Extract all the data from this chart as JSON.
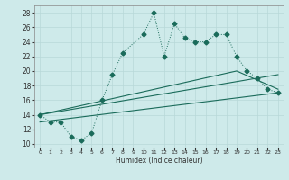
{
  "xlabel": "Humidex (Indice chaleur)",
  "xlim": [
    -0.5,
    23.5
  ],
  "ylim": [
    9.5,
    29
  ],
  "xticks": [
    0,
    1,
    2,
    3,
    4,
    5,
    6,
    7,
    8,
    9,
    10,
    11,
    12,
    13,
    14,
    15,
    16,
    17,
    18,
    19,
    20,
    21,
    22,
    23
  ],
  "yticks": [
    10,
    12,
    14,
    16,
    18,
    20,
    22,
    24,
    26,
    28
  ],
  "bg_color": "#ceeaea",
  "line_color": "#1a6b5a",
  "grid_color": "#b8d8d8",
  "main_line_x": [
    0,
    1,
    2,
    3,
    4,
    5,
    6,
    7,
    8,
    10,
    11,
    12,
    13,
    14,
    15,
    16,
    17,
    18,
    19,
    20,
    21,
    22,
    23
  ],
  "main_line_y": [
    14,
    13,
    13,
    11,
    10.5,
    11.5,
    16,
    19.5,
    22.5,
    25,
    28,
    22,
    26.5,
    24.5,
    24,
    24,
    25,
    25,
    22,
    20,
    19,
    17.5,
    17
  ],
  "line1_x": [
    0,
    23
  ],
  "line1_y": [
    13,
    17
  ],
  "line2_x": [
    0,
    23
  ],
  "line2_y": [
    14,
    19.5
  ],
  "line3_x": [
    0,
    19,
    23
  ],
  "line3_y": [
    14,
    20,
    17.5
  ]
}
